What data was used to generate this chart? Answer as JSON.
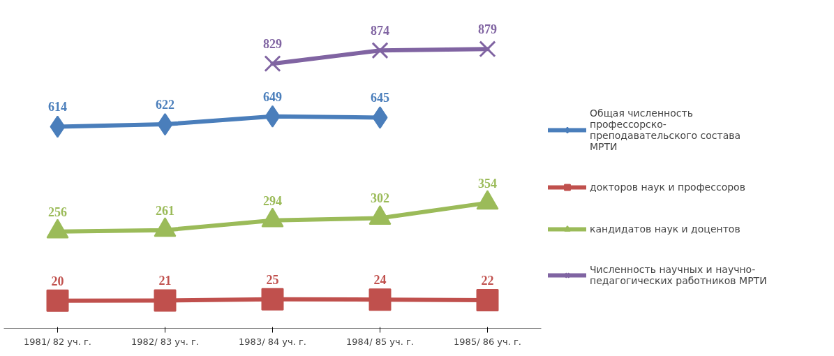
{
  "chart_data": {
    "type": "line",
    "categories": [
      "1981/ 82 уч. г.",
      "1982/ 83 уч. г.",
      "1983/ 84 уч. г.",
      "1984/ 85 уч. г.",
      "1985/ 86 уч. г."
    ],
    "series": [
      {
        "name": "Общая численность профессорско-преподавательского состава МРТИ",
        "color": "#4a7ebb",
        "marker": "diamond",
        "values": [
          614,
          622,
          649,
          645,
          null
        ]
      },
      {
        "name": "докторов наук и профессоров",
        "color": "#c0504d",
        "marker": "square",
        "values": [
          20,
          21,
          25,
          24,
          22
        ]
      },
      {
        "name": "кандидатов наук и доцентов",
        "color": "#9bbb59",
        "marker": "triangle",
        "values": [
          256,
          261,
          294,
          302,
          354
        ]
      },
      {
        "name": "Численность научных и научно-педагогических работников МРТИ",
        "color": "#8064a2",
        "marker": "cross",
        "values": [
          null,
          null,
          829,
          874,
          879
        ]
      }
    ],
    "data_labels": true,
    "legend": "right",
    "grid": false,
    "tick_labels": "x",
    "line_style": "solid"
  }
}
